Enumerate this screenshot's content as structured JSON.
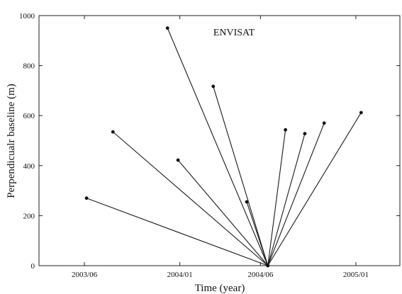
{
  "chart_data": {
    "type": "scatter",
    "title": "ENVISAT",
    "xlabel": "Time (year)",
    "ylabel": "Perpendicualr baseline (m)",
    "x_ticks": [
      {
        "value": 2003.458,
        "label": "2003/06"
      },
      {
        "value": 2004.0,
        "label": "2004/01"
      },
      {
        "value": 2004.458,
        "label": "2004/06"
      },
      {
        "value": 2005.0,
        "label": "2005/01"
      }
    ],
    "y_ticks": [
      0,
      200,
      400,
      600,
      800,
      1000
    ],
    "xlim": [
      2003.2,
      2005.25
    ],
    "ylim": [
      0,
      1000
    ],
    "grid": false,
    "master": {
      "x": 2004.5,
      "y": 0
    },
    "points": [
      {
        "x": 2003.47,
        "y": 270
      },
      {
        "x": 2003.62,
        "y": 535
      },
      {
        "x": 2003.93,
        "y": 950
      },
      {
        "x": 2003.99,
        "y": 422
      },
      {
        "x": 2004.19,
        "y": 717
      },
      {
        "x": 2004.38,
        "y": 255
      },
      {
        "x": 2004.6,
        "y": 543
      },
      {
        "x": 2004.71,
        "y": 528
      },
      {
        "x": 2004.82,
        "y": 570
      },
      {
        "x": 2005.03,
        "y": 612
      }
    ]
  }
}
